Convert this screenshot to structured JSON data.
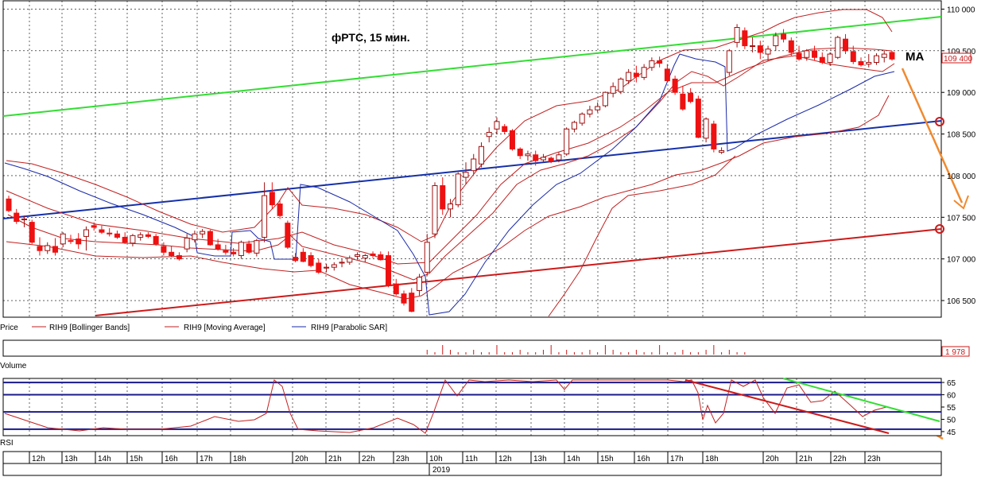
{
  "chart_data": [
    {
      "type": "candlestick",
      "title": "фРТС,  15 мин.",
      "annotation": "MA",
      "ylim": [
        106300,
        110100
      ],
      "y_ticks": [
        "110 000",
        "109 500",
        "109 000",
        "108 500",
        "108 000",
        "107 500",
        "107 000",
        "106 500"
      ],
      "y_tick_values": [
        110000,
        109500,
        109000,
        108500,
        108000,
        107500,
        107000,
        106500
      ],
      "last_price_label": "109 400",
      "last_price": 109400,
      "legend": [
        "Price",
        "RIH9 [Bollinger Bands]",
        "RIH9 [Moving Average]",
        "RIH9 [Parabolic SAR]"
      ],
      "candles": [
        [
          107720,
          107760,
          107560,
          107580
        ],
        [
          107550,
          107600,
          107420,
          107450
        ],
        [
          107470,
          107520,
          107380,
          107480
        ],
        [
          107440,
          107470,
          107180,
          107200
        ],
        [
          107150,
          107260,
          107040,
          107100
        ],
        [
          107100,
          107200,
          107060,
          107160
        ],
        [
          107150,
          107250,
          107040,
          107080
        ],
        [
          107180,
          107320,
          107140,
          107300
        ],
        [
          107220,
          107290,
          107180,
          107210
        ],
        [
          107240,
          107310,
          107120,
          107180
        ],
        [
          107270,
          107390,
          107100,
          107350
        ],
        [
          107400,
          107440,
          107340,
          107380
        ],
        [
          107350,
          107400,
          107300,
          107320
        ],
        [
          107310,
          107370,
          107270,
          107300
        ],
        [
          107300,
          107340,
          107240,
          107260
        ],
        [
          107260,
          107320,
          107180,
          107200
        ],
        [
          107190,
          107300,
          107150,
          107280
        ],
        [
          107260,
          107320,
          107220,
          107290
        ],
        [
          107290,
          107320,
          107250,
          107270
        ],
        [
          107270,
          107300,
          107160,
          107180
        ],
        [
          107150,
          107200,
          107040,
          107080
        ],
        [
          107080,
          107150,
          107020,
          107040
        ],
        [
          107040,
          107080,
          106980,
          107000
        ],
        [
          107120,
          107300,
          107080,
          107250
        ],
        [
          107230,
          107340,
          107200,
          107300
        ],
        [
          107300,
          107360,
          107250,
          107330
        ],
        [
          107330,
          107350,
          107160,
          107170
        ],
        [
          107170,
          107240,
          107100,
          107120
        ],
        [
          107100,
          107170,
          107050,
          107080
        ],
        [
          107080,
          107130,
          107030,
          107060
        ],
        [
          107040,
          107220,
          107000,
          107200
        ],
        [
          107180,
          107220,
          107060,
          107080
        ],
        [
          107070,
          107240,
          107030,
          107220
        ],
        [
          107260,
          107920,
          107200,
          107760
        ],
        [
          107800,
          107920,
          107600,
          107650
        ],
        [
          107660,
          107700,
          107480,
          107520
        ],
        [
          107430,
          107460,
          107120,
          107140
        ],
        [
          107020,
          107070,
          106960,
          106980
        ],
        [
          107080,
          107130,
          106960,
          106970
        ],
        [
          107040,
          107080,
          106900,
          106920
        ],
        [
          106950,
          107000,
          106820,
          106840
        ],
        [
          106890,
          106940,
          106840,
          106900
        ],
        [
          106900,
          106960,
          106860,
          106930
        ],
        [
          106950,
          107000,
          106900,
          106960
        ],
        [
          106960,
          107040,
          106930,
          107010
        ],
        [
          107030,
          107080,
          106990,
          107050
        ],
        [
          107010,
          107060,
          106960,
          107040
        ],
        [
          107060,
          107090,
          107010,
          107040
        ],
        [
          107050,
          107090,
          106980,
          106990
        ],
        [
          107040,
          107090,
          106660,
          106680
        ],
        [
          106700,
          106760,
          106560,
          106580
        ],
        [
          106580,
          106620,
          106440,
          106470
        ],
        [
          106590,
          106650,
          106360,
          106370
        ],
        [
          106620,
          106820,
          106560,
          106780
        ],
        [
          106840,
          107300,
          106800,
          107200
        ],
        [
          107300,
          107920,
          107250,
          107880
        ],
        [
          107880,
          107980,
          107530,
          107600
        ],
        [
          107600,
          107720,
          107500,
          107660
        ],
        [
          107650,
          108040,
          107620,
          108020
        ],
        [
          107980,
          108160,
          107900,
          108040
        ],
        [
          108060,
          108260,
          108020,
          108200
        ],
        [
          108140,
          108400,
          108100,
          108350
        ],
        [
          108470,
          108580,
          108400,
          108520
        ],
        [
          108560,
          108700,
          108500,
          108650
        ],
        [
          108590,
          108620,
          108500,
          108530
        ],
        [
          108540,
          108560,
          108300,
          108320
        ],
        [
          108320,
          108340,
          108200,
          108240
        ],
        [
          108240,
          108300,
          108180,
          108260
        ],
        [
          108250,
          108300,
          108120,
          108180
        ],
        [
          108190,
          108260,
          108160,
          108220
        ],
        [
          108210,
          108230,
          108150,
          108170
        ],
        [
          108190,
          108280,
          108160,
          108250
        ],
        [
          108260,
          108580,
          108240,
          108560
        ],
        [
          108560,
          108660,
          108520,
          108640
        ],
        [
          108630,
          108760,
          108600,
          108740
        ],
        [
          108740,
          108840,
          108700,
          108790
        ],
        [
          108790,
          108880,
          108760,
          108830
        ],
        [
          108840,
          109010,
          108820,
          109000
        ],
        [
          108990,
          109120,
          108940,
          109070
        ],
        [
          109010,
          109180,
          108980,
          109160
        ],
        [
          109140,
          109280,
          109100,
          109240
        ],
        [
          109230,
          109320,
          109120,
          109190
        ],
        [
          109180,
          109340,
          109150,
          109300
        ],
        [
          109300,
          109420,
          109260,
          109380
        ],
        [
          109380,
          109430,
          109300,
          109350
        ],
        [
          109280,
          109340,
          109120,
          109140
        ],
        [
          109160,
          109200,
          108970,
          109000
        ],
        [
          108980,
          109080,
          108780,
          108800
        ],
        [
          108990,
          109050,
          108870,
          108890
        ],
        [
          108920,
          108960,
          108450,
          108460
        ],
        [
          108450,
          108700,
          108400,
          108680
        ],
        [
          108620,
          108660,
          108280,
          108320
        ],
        [
          108280,
          108340,
          108260,
          108300
        ],
        [
          109240,
          109520,
          109200,
          109500
        ],
        [
          109600,
          109820,
          109540,
          109780
        ],
        [
          109740,
          109780,
          109520,
          109560
        ],
        [
          109560,
          109660,
          109480,
          109560
        ],
        [
          109560,
          109620,
          109400,
          109480
        ],
        [
          109460,
          109560,
          109380,
          109520
        ],
        [
          109560,
          109720,
          109500,
          109680
        ],
        [
          109700,
          109760,
          109600,
          109640
        ],
        [
          109620,
          109660,
          109440,
          109480
        ],
        [
          109470,
          109560,
          109380,
          109400
        ],
        [
          109420,
          109520,
          109380,
          109500
        ],
        [
          109500,
          109560,
          109380,
          109420
        ],
        [
          109420,
          109480,
          109340,
          109360
        ],
        [
          109360,
          109480,
          109320,
          109460
        ],
        [
          109420,
          109680,
          109400,
          109660
        ],
        [
          109640,
          109700,
          109460,
          109500
        ],
        [
          109490,
          109560,
          109340,
          109370
        ],
        [
          109370,
          109420,
          109310,
          109330
        ],
        [
          109340,
          109460,
          109300,
          109360
        ],
        [
          109360,
          109470,
          109330,
          109440
        ],
        [
          109420,
          109500,
          109360,
          109460
        ],
        [
          109480,
          109500,
          109380,
          109400
        ]
      ],
      "volume_label": "Volume",
      "volume_last_label": "1 978",
      "rsi_label": "RSI",
      "rsi_ticks": [
        "65",
        "60",
        "55",
        "50",
        "45"
      ],
      "rsi_tick_values": [
        65,
        60,
        55,
        50,
        45
      ],
      "rsi_levels": [
        65,
        60,
        53,
        46
      ],
      "time_labels": [
        "12h",
        "13h",
        "14h",
        "15h",
        "16h",
        "17h",
        "18h",
        "20h",
        "21h",
        "22h",
        "23h",
        "10h",
        "11h",
        "12h",
        "13h",
        "14h",
        "15h",
        "16h",
        "17h",
        "18h",
        "20h",
        "21h",
        "22h",
        "23h"
      ],
      "year_label": "2019"
    }
  ],
  "colors": {
    "up_candle": "#ffffff",
    "down_candle": "#ee1111",
    "bollinger": "#c22020",
    "moving_average": "#c22020",
    "parabolic_sar": "#1a2aa8",
    "green_trend": "#33dd33",
    "blue_trend": "#1530a8",
    "red_trend": "#cc1a1a",
    "forecast_arrow": "#f08a30",
    "grid": "#000000"
  }
}
